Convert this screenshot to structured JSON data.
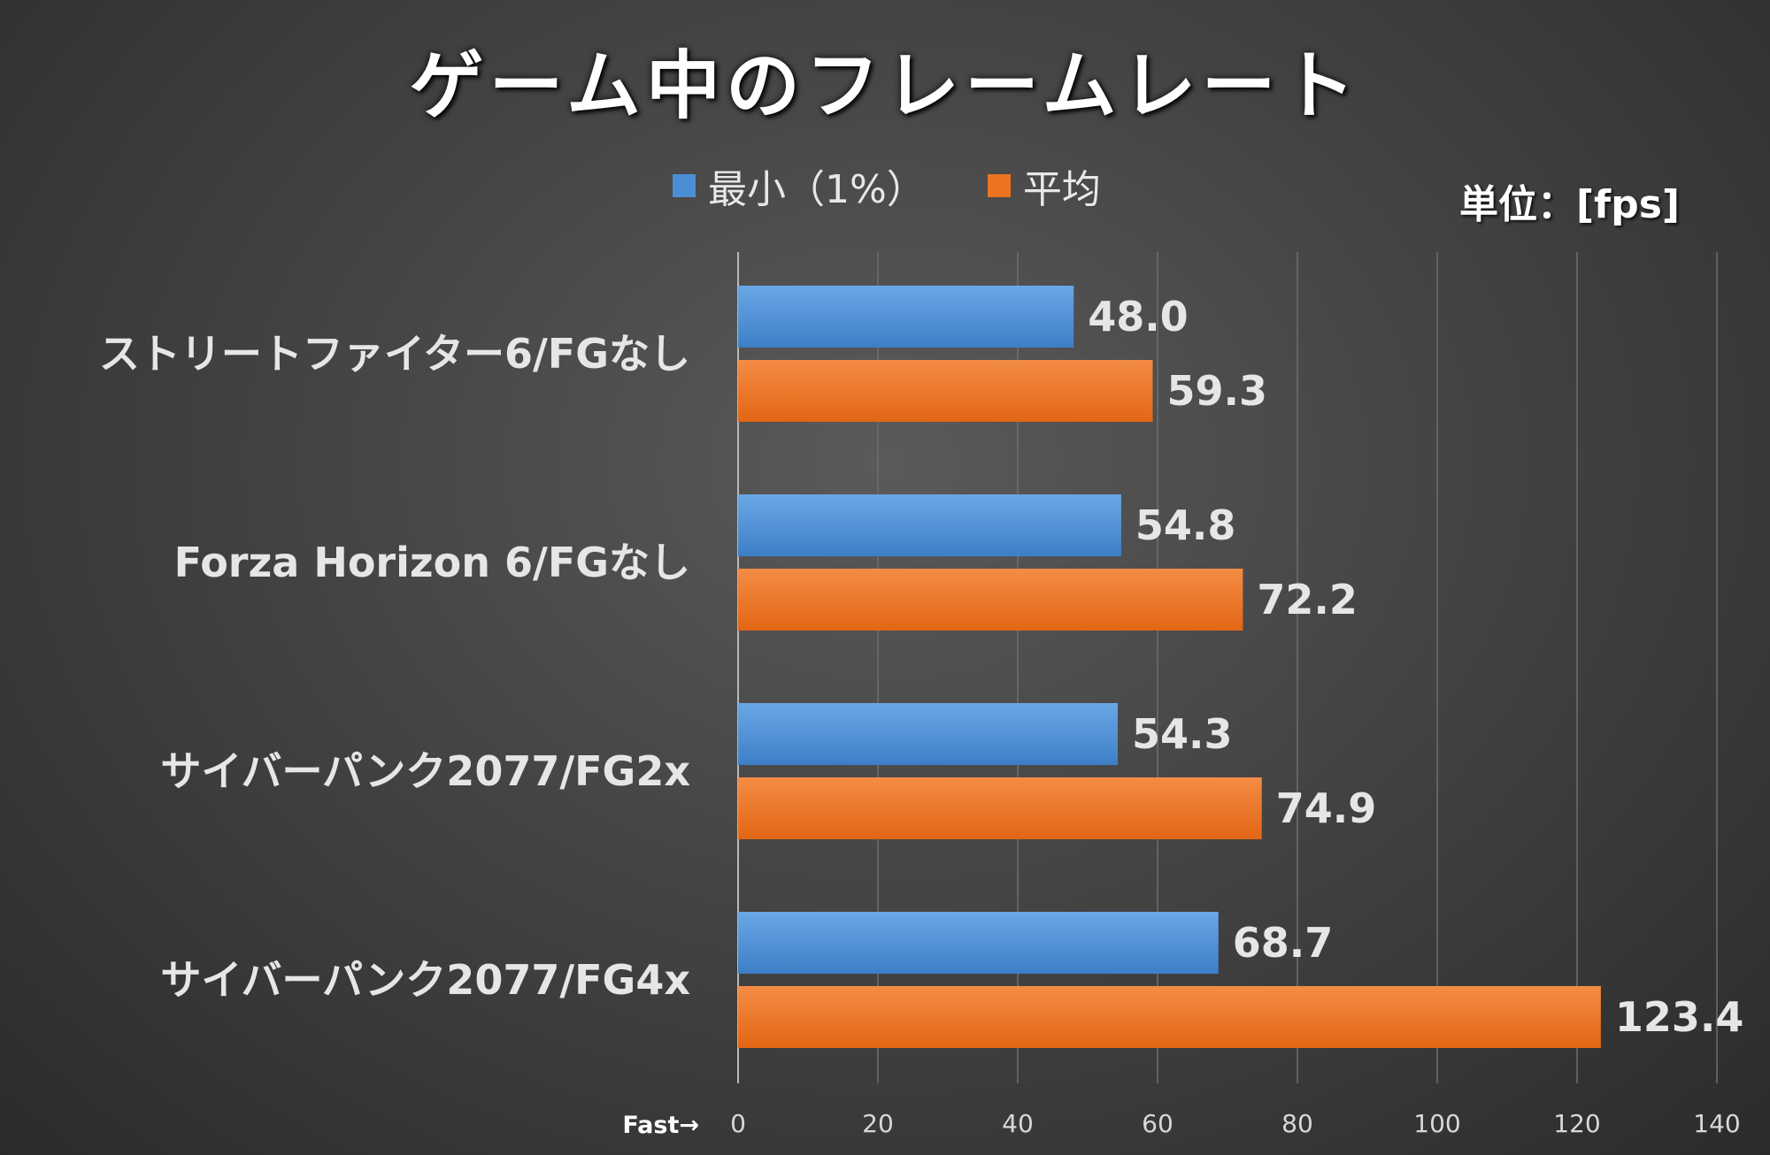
{
  "title": "ゲーム中のフレームレート",
  "unit_label": "単位：[fps]",
  "axis_hint": "Fast→",
  "legend": [
    {
      "label": "最小（1%）",
      "color": "#4a8fd6"
    },
    {
      "label": "平均",
      "color": "#ed7320"
    }
  ],
  "chart_data": {
    "type": "bar",
    "orientation": "horizontal",
    "categories": [
      "ストリートファイター6/FGなし",
      "Forza Horizon 6/FGなし",
      "サイバーパンク2077/FG2x",
      "サイバーパンク2077/FG4x"
    ],
    "series": [
      {
        "name": "最小（1%）",
        "values": [
          48.0,
          54.8,
          54.3,
          68.7
        ],
        "color": "#4a8fd6"
      },
      {
        "name": "平均",
        "values": [
          59.3,
          72.2,
          74.9,
          123.4
        ],
        "color": "#ed7320"
      }
    ],
    "xlim": [
      0,
      140
    ],
    "ticks": [
      0,
      20,
      40,
      60,
      80,
      100,
      120,
      140
    ],
    "grid": true,
    "legend_position": "top"
  }
}
